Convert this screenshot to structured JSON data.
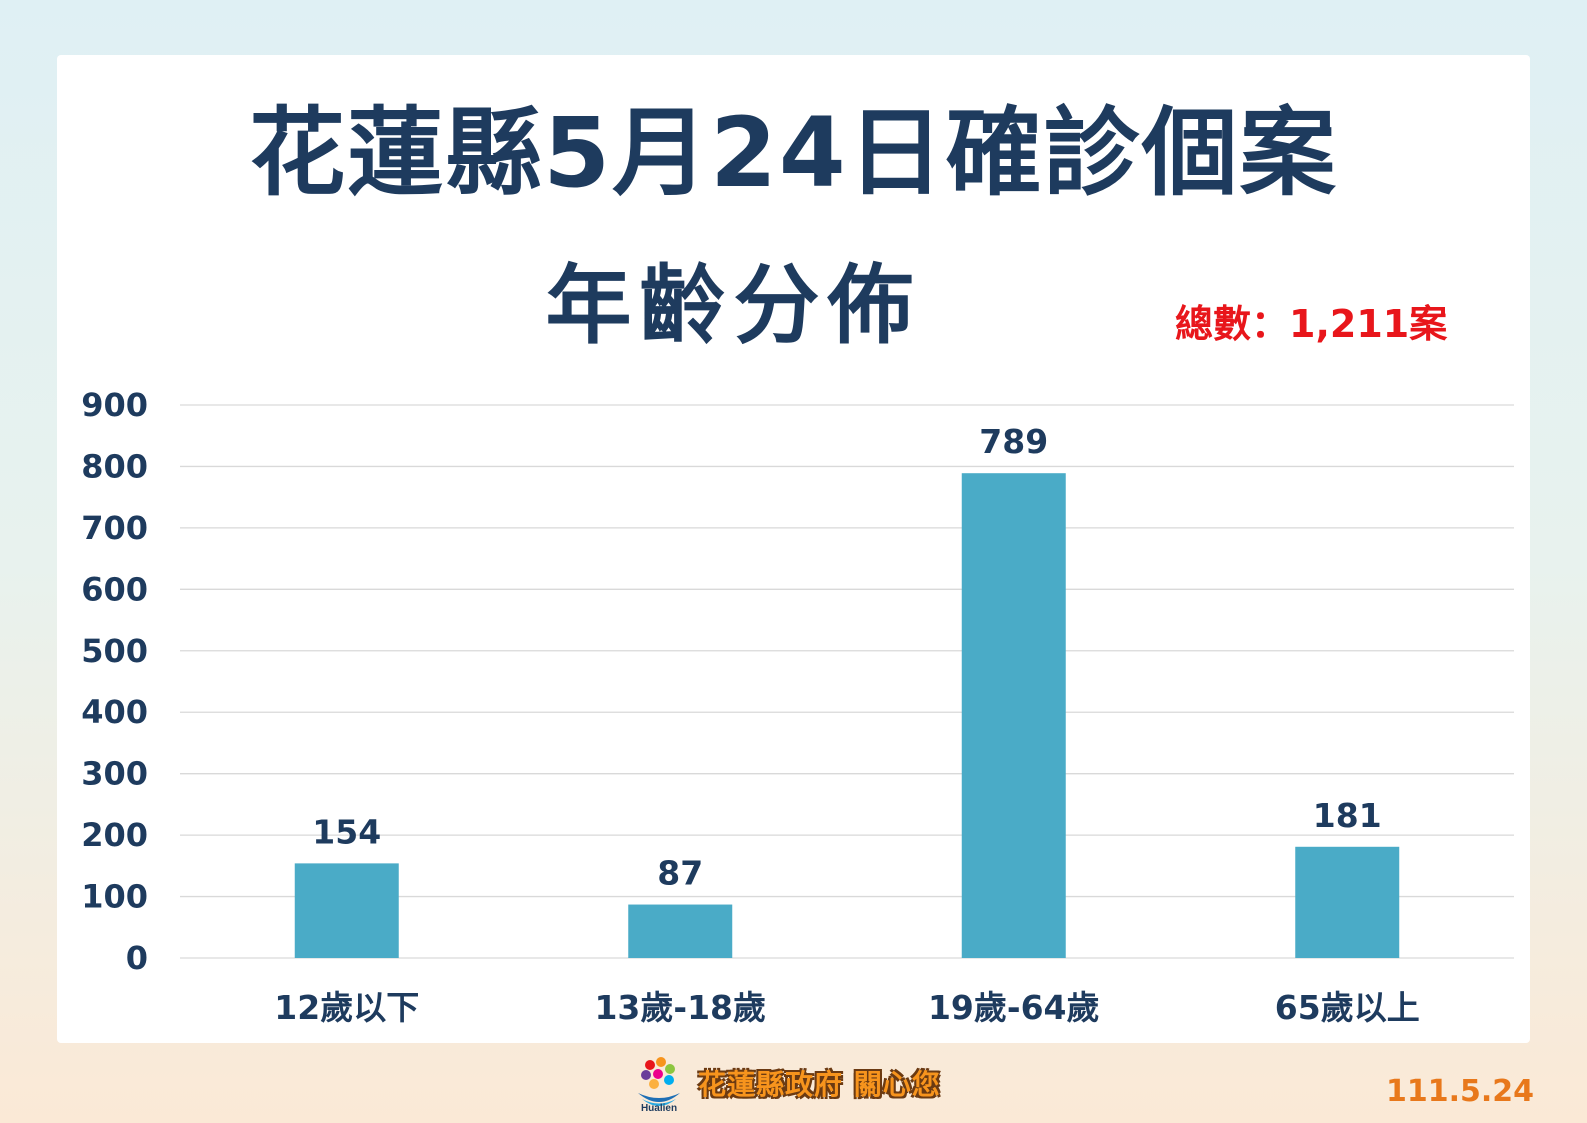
{
  "title_line1": "花蓮縣5月24日確診個案",
  "title_line2": "年齡分佈",
  "total_label": "總數：1,211案",
  "footer": {
    "logo_text": "Hualien",
    "slogan": "花蓮縣政府 關心您",
    "date": "111.5.24"
  },
  "colors": {
    "bar": "#4aabc7",
    "title": "#1e3b5e",
    "total": "#e8161b",
    "gridline": "#d9d9d9"
  },
  "chart_data": {
    "type": "bar",
    "title": "花蓮縣5月24日確診個案 年齡分佈",
    "categories": [
      "12歲以下",
      "13歲-18歲",
      "19歲-64歲",
      "65歲以上"
    ],
    "values": [
      154,
      87,
      789,
      181
    ],
    "ylim": [
      0,
      900
    ],
    "yticks": [
      "0",
      "100",
      "200",
      "300",
      "400",
      "500",
      "600",
      "700",
      "800",
      "900"
    ],
    "grid": true,
    "xlabel": "",
    "ylabel": ""
  }
}
